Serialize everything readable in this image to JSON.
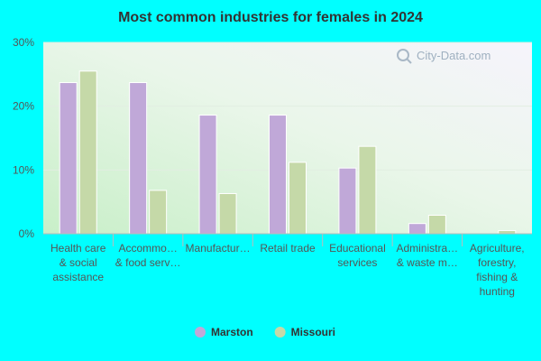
{
  "chart_data": {
    "type": "bar",
    "title": "Most common industries for females in 2024",
    "xlabel": "",
    "ylabel": "",
    "ylim": [
      0,
      30
    ],
    "y_ticks": [
      "0%",
      "10%",
      "20%",
      "30%"
    ],
    "y_tick_values": [
      0,
      10,
      20,
      30
    ],
    "grid": true,
    "legend_position": "bottom",
    "categories": [
      [
        "Health care",
        "& social",
        "assistance"
      ],
      [
        "Accommo…",
        "& food serv…"
      ],
      [
        "Manufactur…"
      ],
      [
        "Retail trade"
      ],
      [
        "Educational",
        "services"
      ],
      [
        "Administra…",
        "& waste m…"
      ],
      [
        "Agriculture,",
        "forestry,",
        "fishing &",
        "hunting"
      ]
    ],
    "series": [
      {
        "name": "Marston",
        "color": "#c0a8d8",
        "values": [
          23.7,
          23.7,
          18.6,
          18.6,
          10.3,
          1.6,
          0
        ]
      },
      {
        "name": "Missouri",
        "color": "#c5d9a8",
        "values": [
          25.5,
          6.8,
          6.3,
          11.2,
          13.7,
          2.9,
          0.5
        ]
      }
    ],
    "watermark": "City-Data.com"
  }
}
